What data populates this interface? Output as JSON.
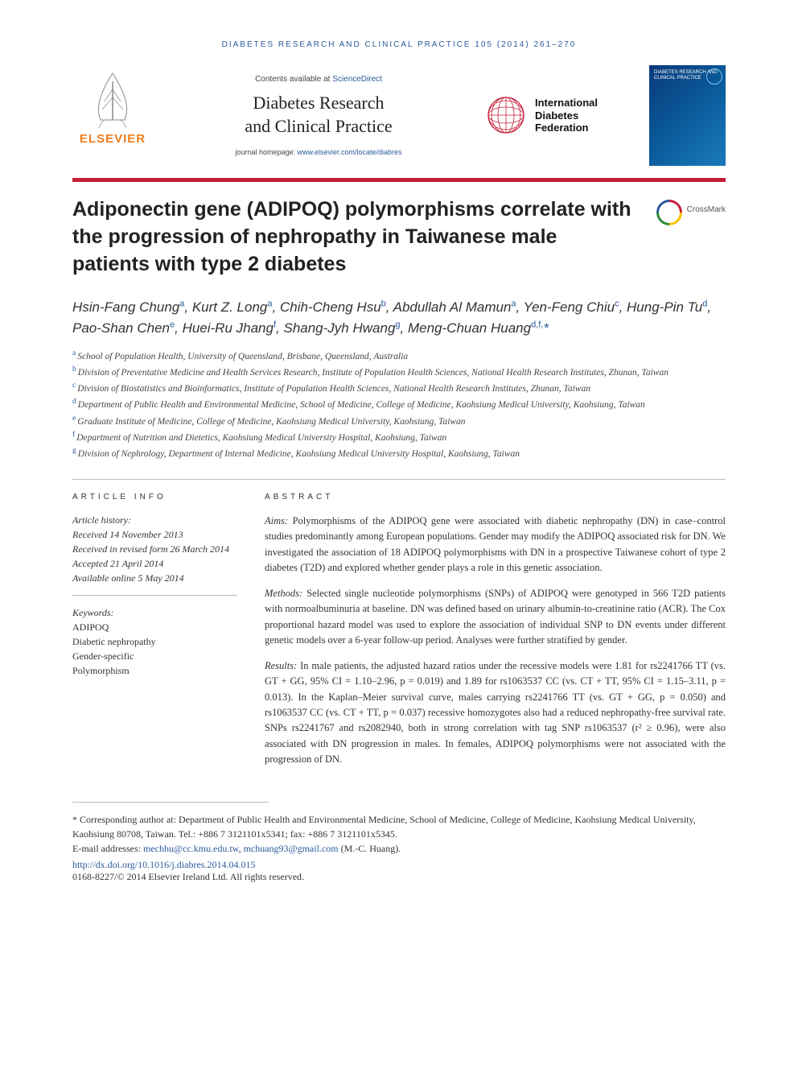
{
  "running_head": "DIABETES RESEARCH AND CLINICAL PRACTICE 105 (2014) 261–270",
  "masthead": {
    "elsevier_label": "ELSEVIER",
    "contents_prefix": "Contents available at ",
    "contents_link": "ScienceDirect",
    "journal_line1": "Diabetes Research",
    "journal_line2": "and Clinical Practice",
    "homepage_prefix": "journal homepage: ",
    "homepage_link": "www.elsevier.com/locate/diabres",
    "idf_line1": "International",
    "idf_line2": "Diabetes",
    "idf_line3": "Federation",
    "cover_title": "DIABETES RESEARCH AND CLINICAL PRACTICE"
  },
  "crossmark": "CrossMark",
  "title": "Adiponectin gene (ADIPOQ) polymorphisms correlate with the progression of nephropathy in Taiwanese male patients with type 2 diabetes",
  "authors": [
    {
      "name": "Hsin-Fang Chung",
      "aff": "a"
    },
    {
      "name": "Kurt Z. Long",
      "aff": "a"
    },
    {
      "name": "Chih-Cheng Hsu",
      "aff": "b"
    },
    {
      "name": "Abdullah Al Mamun",
      "aff": "a"
    },
    {
      "name": "Yen-Feng Chiu",
      "aff": "c"
    },
    {
      "name": "Hung-Pin Tu",
      "aff": "d"
    },
    {
      "name": "Pao-Shan Chen",
      "aff": "e"
    },
    {
      "name": "Huei-Ru Jhang",
      "aff": "f"
    },
    {
      "name": "Shang-Jyh Hwang",
      "aff": "g"
    },
    {
      "name": "Meng-Chuan Huang",
      "aff": "d,f,",
      "star": true
    }
  ],
  "affiliations": {
    "a": "School of Population Health, University of Queensland, Brisbane, Queensland, Australia",
    "b": "Division of Preventative Medicine and Health Services Research, Institute of Population Health Sciences, National Health Research Institutes, Zhunan, Taiwan",
    "c": "Division of Biostatistics and Bioinformatics, Institute of Population Health Sciences, National Health Research Institutes, Zhunan, Taiwan",
    "d": "Department of Public Health and Environmental Medicine, School of Medicine, College of Medicine, Kaohsiung Medical University, Kaohsiung, Taiwan",
    "e": "Graduate Institute of Medicine, College of Medicine, Kaohsiung Medical University, Kaohsiung, Taiwan",
    "f": "Department of Nutrition and Dietetics, Kaohsiung Medical University Hospital, Kaohsiung, Taiwan",
    "g": "Division of Nephrology, Department of Internal Medicine, Kaohsiung Medical University Hospital, Kaohsiung, Taiwan"
  },
  "article_info": {
    "head": "ARTICLE INFO",
    "history_label": "Article history:",
    "received": "Received 14 November 2013",
    "revised": "Received in revised form 26 March 2014",
    "accepted": "Accepted 21 April 2014",
    "online": "Available online 5 May 2014",
    "keywords_label": "Keywords:",
    "keywords": [
      "ADIPOQ",
      "Diabetic nephropathy",
      "Gender-specific",
      "Polymorphism"
    ]
  },
  "abstract": {
    "head": "ABSTRACT",
    "aims_label": "Aims:",
    "aims": "Polymorphisms of the ADIPOQ gene were associated with diabetic nephropathy (DN) in case–control studies predominantly among European populations. Gender may modify the ADIPOQ associated risk for DN. We investigated the association of 18 ADIPOQ polymorphisms with DN in a prospective Taiwanese cohort of type 2 diabetes (T2D) and explored whether gender plays a role in this genetic association.",
    "methods_label": "Methods:",
    "methods": "Selected single nucleotide polymorphisms (SNPs) of ADIPOQ were genotyped in 566 T2D patients with normoalbuminuria at baseline. DN was defined based on urinary albumin-to-creatinine ratio (ACR). The Cox proportional hazard model was used to explore the association of individual SNP to DN events under different genetic models over a 6-year follow-up period. Analyses were further stratified by gender.",
    "results_label": "Results:",
    "results": "In male patients, the adjusted hazard ratios under the recessive models were 1.81 for rs2241766 TT (vs. GT + GG, 95% CI = 1.10–2.96, p = 0.019) and 1.89 for rs1063537 CC (vs. CT + TT, 95% CI = 1.15–3.11, p = 0.013). In the Kaplan–Meier survival curve, males carrying rs2241766 TT (vs. GT + GG, p = 0.050) and rs1063537 CC (vs. CT + TT, p = 0.037) recessive homozygotes also had a reduced nephropathy-free survival rate. SNPs rs2241767 and rs2082940, both in strong correlation with tag SNP rs1063537 (r² ≥ 0.96), were also associated with DN progression in males. In females, ADIPOQ polymorphisms were not associated with the progression of DN."
  },
  "footnote": {
    "corr_label": "* Corresponding author at: ",
    "corr_text": "Department of Public Health and Environmental Medicine, School of Medicine, College of Medicine, Kaohsiung Medical University, Kaohsiung 80708, Taiwan. Tel.: +886 7 3121101x5341; fax: +886 7 3121101x5345.",
    "email_label": "E-mail addresses: ",
    "email1": "mechhu@cc.kmu.edu.tw",
    "email_sep": ", ",
    "email2": "mchuang93@gmail.com",
    "email_tail": " (M.-C. Huang).",
    "doi": "http://dx.doi.org/10.1016/j.diabres.2014.04.015",
    "copyright": "0168-8227/© 2014 Elsevier Ireland Ltd. All rights reserved."
  },
  "colors": {
    "link": "#2a5a9c",
    "accent_red": "#c41e3a",
    "elsevier_orange": "#ef7d1d"
  }
}
